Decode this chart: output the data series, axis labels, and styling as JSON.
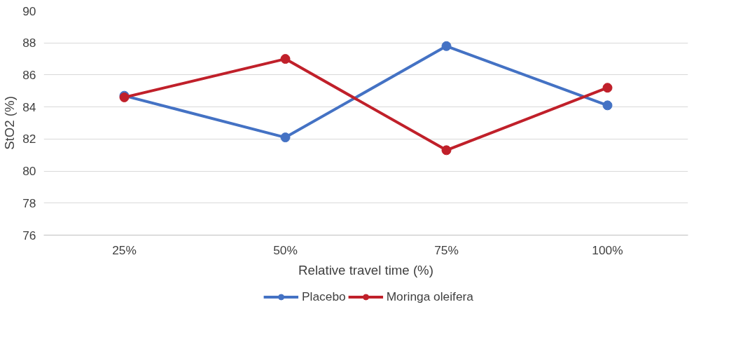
{
  "chart_data": {
    "type": "line",
    "xlabel": "Relative travel time (%)",
    "ylabel": "StO2 (%)",
    "categories": [
      "25%",
      "50%",
      "75%",
      "100%"
    ],
    "series": [
      {
        "name": "Placebo",
        "color": "#4472c4",
        "values": [
          84.7,
          82.1,
          87.8,
          84.1
        ]
      },
      {
        "name": "Moringa oleifera",
        "color": "#c0202a",
        "values": [
          84.6,
          87.0,
          81.3,
          85.2
        ]
      }
    ],
    "ylim": [
      76,
      90
    ],
    "yticks": [
      76,
      78,
      80,
      82,
      84,
      86,
      88,
      90
    ],
    "grid": "y",
    "legend": "bottom",
    "marker": "circle",
    "line_style": "solid"
  }
}
